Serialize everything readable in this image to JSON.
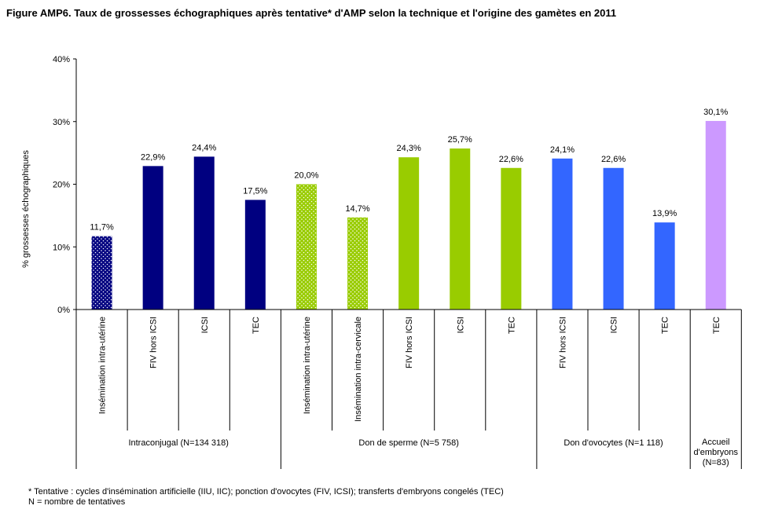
{
  "title": "Figure AMP6. Taux de grossesses échographiques après tentative* d'AMP selon la technique et l'origine des gamètes en 2011",
  "footnote": {
    "line1": "* Tentative : cycles d'insémination artificielle (IIU, IIC); ponction d'ovocytes (FIV, ICSI); transferts d'embryons congelés (TEC)",
    "line2": "N = nombre de tentatives"
  },
  "chart_data": {
    "type": "bar",
    "ylabel": "% grossesses échographiques",
    "ylim": [
      0,
      40
    ],
    "yticks": [
      0,
      10,
      20,
      30,
      40
    ],
    "ytick_labels": [
      "0%",
      "10%",
      "20%",
      "30%",
      "40%"
    ],
    "grid": false,
    "categories": [
      "Insémination intra-utérine",
      "FIV hors ICSI",
      "ICSI",
      "TEC",
      "Insémination intra-utérine",
      "Insémination intra-cervicale",
      "FIV hors ICSI",
      "ICSI",
      "TEC",
      "FIV hors ICSI",
      "ICSI",
      "TEC",
      "TEC"
    ],
    "values": [
      11.7,
      22.9,
      24.4,
      17.5,
      20.0,
      14.7,
      24.3,
      25.7,
      22.6,
      24.1,
      22.6,
      13.9,
      30.1
    ],
    "value_labels": [
      "11,7%",
      "22,9%",
      "24,4%",
      "17,5%",
      "20,0%",
      "14,7%",
      "24,3%",
      "25,7%",
      "22,6%",
      "24,1%",
      "22,6%",
      "13,9%",
      "30,1%"
    ],
    "colors": [
      "#000080",
      "#000080",
      "#000080",
      "#000080",
      "#99cc00",
      "#99cc00",
      "#99cc00",
      "#99cc00",
      "#99cc00",
      "#3366ff",
      "#3366ff",
      "#3366ff",
      "#cc99ff"
    ],
    "dotted": [
      true,
      false,
      false,
      false,
      true,
      true,
      false,
      false,
      false,
      false,
      false,
      false,
      false
    ],
    "groups": [
      {
        "label": "Intraconjugal (N=134 318)",
        "start": 0,
        "count": 4
      },
      {
        "label": "Don de sperme (N=5 758)",
        "start": 4,
        "count": 5
      },
      {
        "label": "Don d'ovocytes (N=1 118)",
        "start": 9,
        "count": 3
      },
      {
        "label": "Accueil d'embryons (N=83)",
        "start": 12,
        "count": 1
      }
    ]
  }
}
